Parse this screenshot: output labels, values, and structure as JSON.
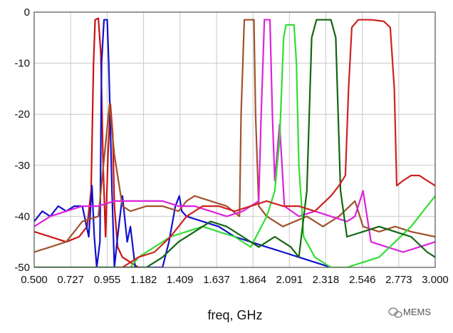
{
  "chart_data": {
    "type": "line",
    "title": "",
    "xlabel": "freq, GHz",
    "ylabel": "",
    "xlim": [
      0.5,
      3.0
    ],
    "ylim": [
      -50,
      0
    ],
    "grid": true,
    "x_ticks": [
      0.5,
      0.727,
      0.955,
      1.182,
      1.409,
      1.637,
      1.864,
      2.091,
      2.318,
      2.546,
      2.773,
      3.0
    ],
    "x_tick_labels": [
      "0.500",
      "0.727",
      "0.955",
      "1.182",
      "1.409",
      "1.637",
      "1.864",
      "2.091",
      "2.318",
      "2.546",
      "2.773",
      "3.000"
    ],
    "y_ticks": [
      0,
      -10,
      -20,
      -30,
      -40,
      -50
    ],
    "y_tick_labels": [
      "0",
      "-10",
      "-20",
      "-30",
      "-40",
      "-50"
    ],
    "series": [
      {
        "color": "#cc1111",
        "points": [
          [
            0.5,
            -43
          ],
          [
            0.6,
            -44
          ],
          [
            0.7,
            -45
          ],
          [
            0.78,
            -44
          ],
          [
            0.83,
            -42
          ],
          [
            0.855,
            -35
          ],
          [
            0.87,
            -10
          ],
          [
            0.88,
            -1.5
          ],
          [
            0.9,
            -1.2
          ],
          [
            0.915,
            -8
          ],
          [
            0.93,
            -30
          ],
          [
            0.945,
            -44
          ],
          [
            0.96,
            -28
          ],
          [
            0.975,
            -18
          ],
          [
            0.99,
            -24
          ],
          [
            1.0,
            -38
          ],
          [
            1.02,
            -46
          ],
          [
            1.05,
            -48
          ],
          [
            1.1,
            -49
          ],
          [
            1.15,
            -50
          ]
        ]
      },
      {
        "color": "#1111cc",
        "points": [
          [
            0.5,
            -41
          ],
          [
            0.55,
            -39
          ],
          [
            0.6,
            -40
          ],
          [
            0.65,
            -38
          ],
          [
            0.7,
            -39
          ],
          [
            0.75,
            -38
          ],
          [
            0.8,
            -38
          ],
          [
            0.84,
            -44
          ],
          [
            0.86,
            -34
          ],
          [
            0.875,
            -44
          ],
          [
            0.89,
            -50
          ],
          [
            0.91,
            -45
          ],
          [
            0.92,
            -10
          ],
          [
            0.935,
            -1.5
          ],
          [
            0.955,
            -1.5
          ],
          [
            0.965,
            -10
          ],
          [
            0.985,
            -35
          ],
          [
            1.0,
            -50
          ],
          [
            1.02,
            -44
          ],
          [
            1.05,
            -36
          ],
          [
            1.08,
            -45
          ],
          [
            1.1,
            -42
          ],
          [
            1.13,
            -50
          ],
          [
            1.3,
            -50
          ],
          [
            1.34,
            -45
          ],
          [
            1.38,
            -38
          ],
          [
            1.405,
            -36
          ],
          [
            1.42,
            -39
          ],
          [
            1.45,
            -40
          ],
          [
            1.55,
            -41
          ],
          [
            1.65,
            -42
          ],
          [
            1.75,
            -44
          ],
          [
            1.85,
            -45
          ],
          [
            1.95,
            -46
          ],
          [
            2.05,
            -47
          ],
          [
            2.15,
            -48
          ],
          [
            2.25,
            -49
          ],
          [
            2.35,
            -50
          ]
        ]
      },
      {
        "color": "#a0522d",
        "points": [
          [
            0.5,
            -47
          ],
          [
            0.6,
            -46
          ],
          [
            0.7,
            -45
          ],
          [
            0.8,
            -41
          ],
          [
            0.9,
            -40
          ],
          [
            0.97,
            -18
          ],
          [
            1.0,
            -28
          ],
          [
            1.05,
            -38
          ],
          [
            1.1,
            -39
          ],
          [
            1.2,
            -38
          ],
          [
            1.3,
            -38
          ],
          [
            1.4,
            -39
          ],
          [
            1.45,
            -37
          ],
          [
            1.5,
            -36
          ],
          [
            1.6,
            -37
          ],
          [
            1.7,
            -38
          ],
          [
            1.78,
            -40
          ],
          [
            1.79,
            -20
          ],
          [
            1.81,
            -1.5
          ],
          [
            1.87,
            -1.5
          ],
          [
            1.88,
            -20
          ],
          [
            1.9,
            -38
          ],
          [
            1.95,
            -40
          ],
          [
            2.05,
            -42
          ],
          [
            2.2,
            -40
          ],
          [
            2.3,
            -42
          ],
          [
            2.4,
            -40
          ],
          [
            2.5,
            -37
          ],
          [
            2.55,
            -42
          ],
          [
            2.65,
            -43
          ],
          [
            2.75,
            -42
          ],
          [
            2.85,
            -43
          ],
          [
            3.0,
            -44
          ]
        ]
      },
      {
        "color": "#dd22dd",
        "points": [
          [
            0.5,
            -42
          ],
          [
            0.6,
            -40
          ],
          [
            0.7,
            -39
          ],
          [
            0.8,
            -38
          ],
          [
            0.9,
            -38
          ],
          [
            1.0,
            -37
          ],
          [
            1.1,
            -37
          ],
          [
            1.2,
            -37
          ],
          [
            1.3,
            -37
          ],
          [
            1.4,
            -38
          ],
          [
            1.5,
            -38
          ],
          [
            1.6,
            -39
          ],
          [
            1.7,
            -40
          ],
          [
            1.8,
            -39
          ],
          [
            1.9,
            -37
          ],
          [
            1.915,
            -20
          ],
          [
            1.935,
            -1.5
          ],
          [
            1.97,
            -1.5
          ],
          [
            1.985,
            -20
          ],
          [
            2.0,
            -33
          ],
          [
            2.03,
            -22
          ],
          [
            2.06,
            -38
          ],
          [
            2.15,
            -40
          ],
          [
            2.25,
            -39
          ],
          [
            2.35,
            -40
          ],
          [
            2.45,
            -41
          ],
          [
            2.5,
            -40
          ],
          [
            2.55,
            -35
          ],
          [
            2.6,
            -45
          ],
          [
            2.7,
            -46
          ],
          [
            2.8,
            -47
          ],
          [
            2.9,
            -46
          ],
          [
            3.0,
            -45
          ]
        ]
      },
      {
        "color": "#33dd33",
        "points": [
          [
            0.5,
            -50
          ],
          [
            1.1,
            -50
          ],
          [
            1.15,
            -48
          ],
          [
            1.25,
            -46
          ],
          [
            1.35,
            -44
          ],
          [
            1.45,
            -43
          ],
          [
            1.55,
            -42
          ],
          [
            1.65,
            -43
          ],
          [
            1.75,
            -44
          ],
          [
            1.85,
            -46
          ],
          [
            1.95,
            -40
          ],
          [
            2.0,
            -35
          ],
          [
            2.03,
            -25
          ],
          [
            2.055,
            -5
          ],
          [
            2.07,
            -2.5
          ],
          [
            2.12,
            -2.5
          ],
          [
            2.135,
            -10
          ],
          [
            2.15,
            -30
          ],
          [
            2.18,
            -44
          ],
          [
            2.25,
            -48
          ],
          [
            2.35,
            -50
          ],
          [
            2.45,
            -50
          ],
          [
            2.55,
            -49
          ],
          [
            2.65,
            -48
          ],
          [
            2.75,
            -45
          ],
          [
            2.85,
            -42
          ],
          [
            2.95,
            -38
          ],
          [
            3.0,
            -36
          ]
        ]
      },
      {
        "color": "#116611",
        "points": [
          [
            0.5,
            -50
          ],
          [
            1.2,
            -50
          ],
          [
            1.3,
            -48
          ],
          [
            1.4,
            -45
          ],
          [
            1.5,
            -43
          ],
          [
            1.6,
            -41
          ],
          [
            1.7,
            -42
          ],
          [
            1.8,
            -44
          ],
          [
            1.9,
            -46
          ],
          [
            2.0,
            -44
          ],
          [
            2.1,
            -46
          ],
          [
            2.15,
            -48
          ],
          [
            2.2,
            -35
          ],
          [
            2.23,
            -5
          ],
          [
            2.26,
            -1.5
          ],
          [
            2.35,
            -1.5
          ],
          [
            2.38,
            -5
          ],
          [
            2.41,
            -35
          ],
          [
            2.45,
            -44
          ],
          [
            2.55,
            -43
          ],
          [
            2.65,
            -42
          ],
          [
            2.75,
            -43
          ],
          [
            2.85,
            -44
          ],
          [
            2.95,
            -47
          ],
          [
            3.0,
            -48
          ]
        ]
      },
      {
        "color": "#cc2222",
        "points": [
          [
            1.05,
            -50
          ],
          [
            1.15,
            -48
          ],
          [
            1.25,
            -47
          ],
          [
            1.35,
            -44
          ],
          [
            1.45,
            -40
          ],
          [
            1.55,
            -38
          ],
          [
            1.65,
            -38
          ],
          [
            1.75,
            -39
          ],
          [
            1.85,
            -38
          ],
          [
            1.95,
            -37
          ],
          [
            2.05,
            -38
          ],
          [
            2.15,
            -38
          ],
          [
            2.25,
            -39
          ],
          [
            2.35,
            -36
          ],
          [
            2.4,
            -34
          ],
          [
            2.44,
            -32
          ],
          [
            2.46,
            -15
          ],
          [
            2.48,
            -3
          ],
          [
            2.52,
            -1.5
          ],
          [
            2.6,
            -1.5
          ],
          [
            2.68,
            -1.8
          ],
          [
            2.72,
            -3
          ],
          [
            2.745,
            -15
          ],
          [
            2.76,
            -34
          ],
          [
            2.8,
            -33
          ],
          [
            2.85,
            -32
          ],
          [
            2.9,
            -32
          ],
          [
            2.95,
            -33
          ],
          [
            3.0,
            -34
          ]
        ]
      }
    ]
  },
  "watermark": {
    "icon": "wechat-icon",
    "text": "MEMS"
  }
}
